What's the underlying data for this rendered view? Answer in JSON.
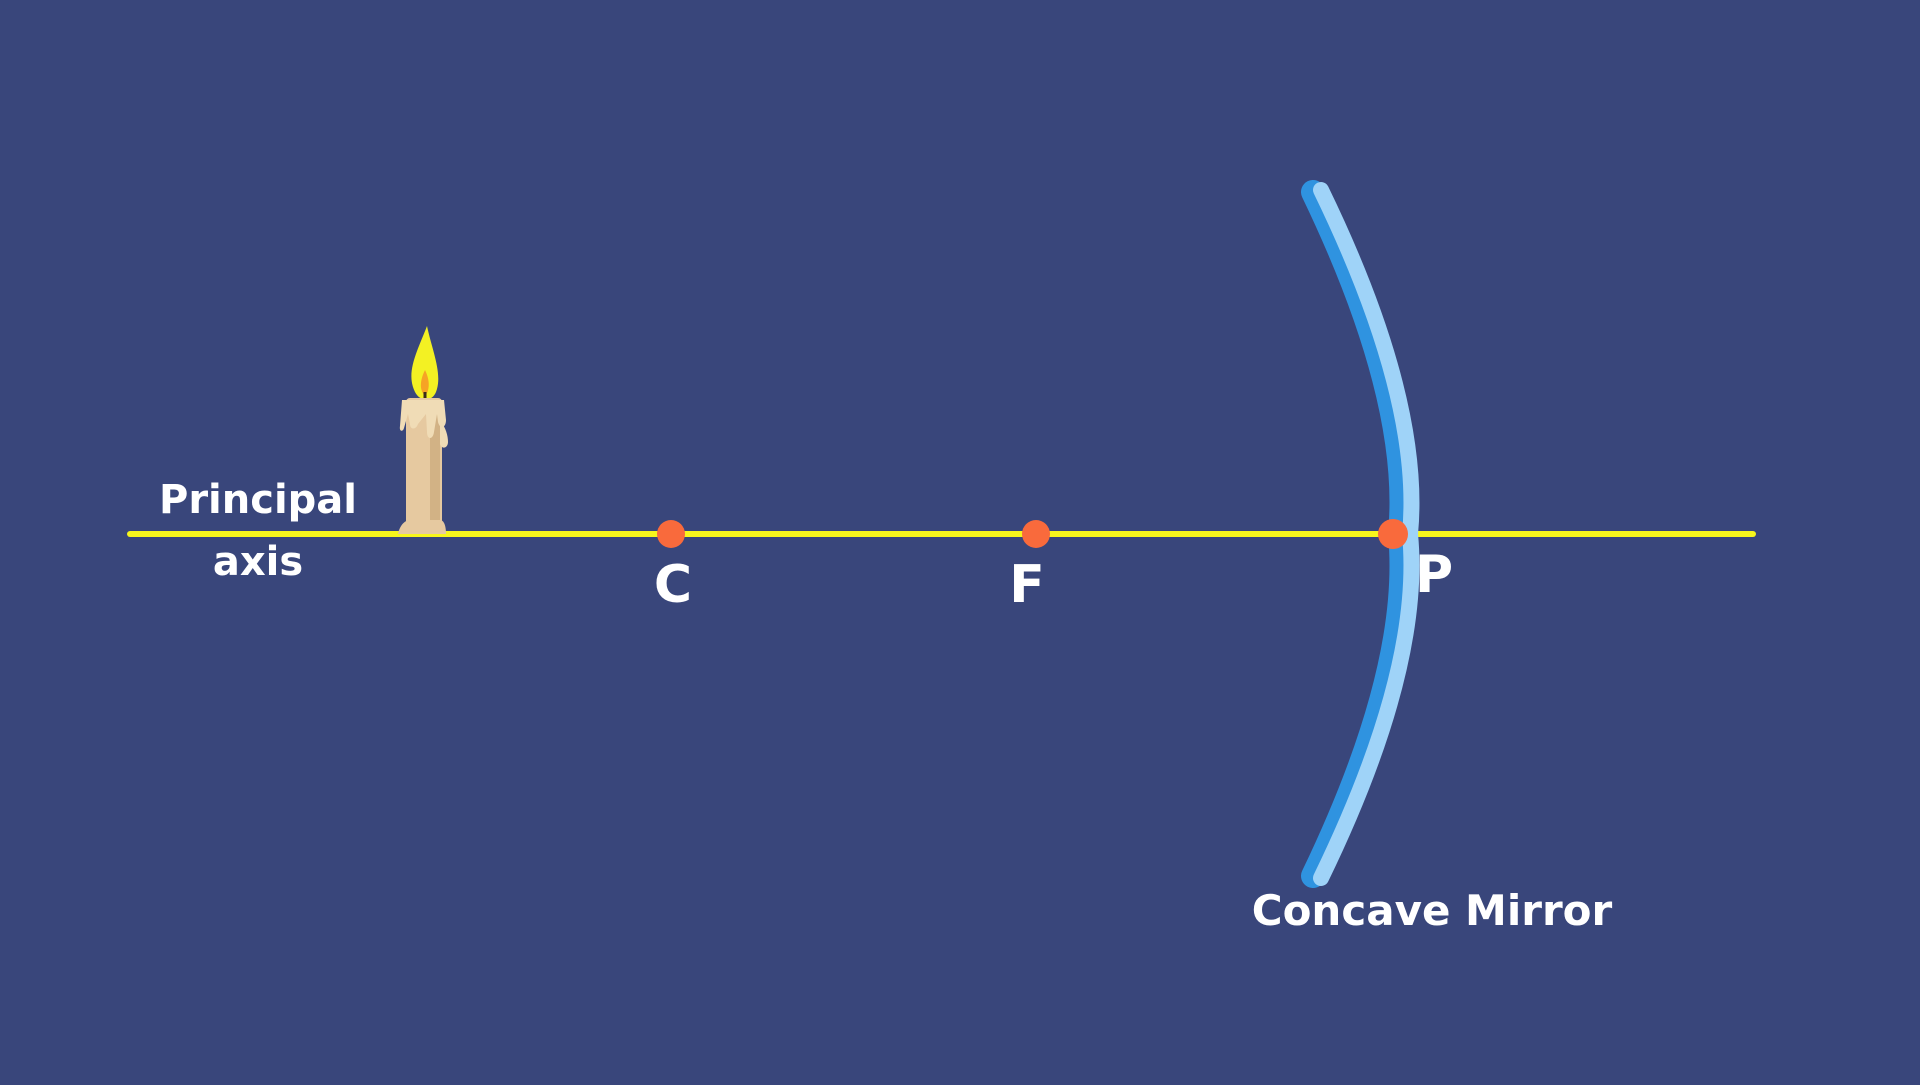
{
  "background_color": "#39467b",
  "axis": {
    "color": "#f7f61c",
    "label_line1": "Principal",
    "label_line2": "axis"
  },
  "points": [
    {
      "label": "C",
      "color": "#f96a3c"
    },
    {
      "label": "F",
      "color": "#f96a3c"
    },
    {
      "label": "P",
      "color": "#f96a3c"
    }
  ],
  "mirror": {
    "label": "Concave Mirror",
    "light_color": "#9fd3f8",
    "dark_color": "#2f93e0"
  },
  "object": {
    "type": "candle-icon"
  }
}
